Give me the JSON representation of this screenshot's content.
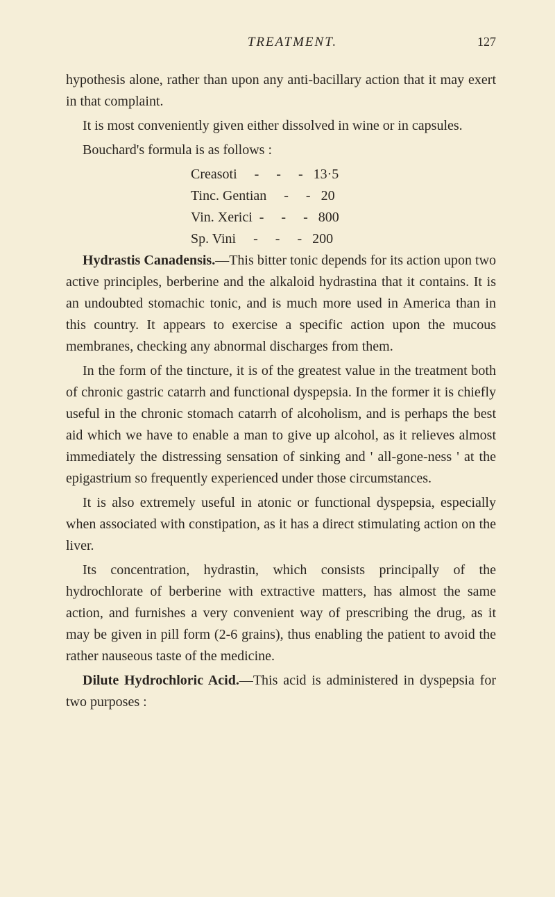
{
  "header": {
    "title": "TREATMENT.",
    "page_number": "127"
  },
  "paragraphs": {
    "p1": "hypothesis alone, rather than upon any anti-bacillary action that it may exert in that complaint.",
    "p2": "It is most conveniently given either dissolved in wine or in capsules.",
    "p3": "Bouchard's formula is as follows :",
    "formula": {
      "line1": "Creasoti     -     -     -   13·5",
      "line2": "Tinc. Gentian     -     -   20",
      "line3": "Vin. Xerici  -     -     -   800",
      "line4": "Sp. Vini     -     -     -   200"
    },
    "p4_bold": "Hydrastis Canadensis.",
    "p4": "—This bitter tonic depends for its action upon two active principles, berberine and the alkaloid hydrastina that it contains. It is an undoubted stomachic tonic, and is much more used in America than in this country. It appears to exercise a specific action upon the mucous membranes, checking any abnormal discharges from them.",
    "p5": "In the form of the tincture, it is of the greatest value in the treatment both of chronic gastric catarrh and functional dyspepsia. In the former it is chiefly useful in the chronic stomach catarrh of alcoholism, and is perhaps the best aid which we have to enable a man to give up alcohol, as it relieves almost immediately the distressing sensation of sinking and ' all-gone-ness ' at the epigastrium so frequently experienced under those circumstances.",
    "p6": "It is also extremely useful in atonic or functional dyspepsia, especially when associated with constipation, as it has a direct stimulating action on the liver.",
    "p7": "Its concentration, hydrastin, which consists principally of the hydrochlorate of berberine with extractive matters, has almost the same action, and furnishes a very convenient way of prescribing the drug, as it may be given in pill form (2-6 grains), thus enabling the patient to avoid the rather nauseous taste of the medicine.",
    "p8_bold": "Dilute Hydrochloric Acid.",
    "p8": "—This acid is administered in dyspepsia for two purposes :"
  },
  "styling": {
    "background_color": "#f5eed8",
    "text_color": "#2a2520",
    "body_fontsize": 20,
    "header_fontsize": 19
  }
}
